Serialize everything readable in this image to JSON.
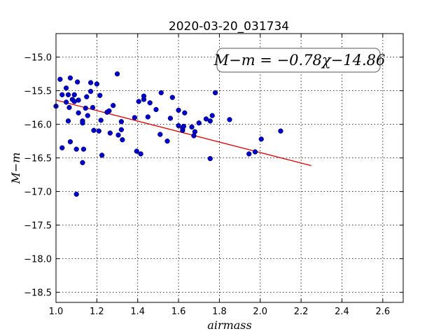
{
  "chart_data": {
    "type": "scatter",
    "title": "2020-03-20_031734",
    "xlabel": "airmass",
    "ylabel": "M−m",
    "annotation": "M−m = −0.78χ−14.86",
    "xlim": [
      1.0,
      2.7
    ],
    "ylim": [
      -18.65,
      -14.65
    ],
    "y_inverted": true,
    "grid": true,
    "xticks": [
      "1.0",
      "1.2",
      "1.4",
      "1.6",
      "1.8",
      "2.0",
      "2.2",
      "2.4",
      "2.6"
    ],
    "yticks": [
      "−15.0",
      "−15.5",
      "−16.0",
      "−16.5",
      "−17.0",
      "−17.5",
      "−18.0",
      "−18.5"
    ],
    "xtick_values": [
      1.0,
      1.2,
      1.4,
      1.6,
      1.8,
      2.0,
      2.2,
      2.4,
      2.6
    ],
    "ytick_values": [
      -15.0,
      -15.5,
      -16.0,
      -16.5,
      -17.0,
      -17.5,
      -18.0,
      -18.5
    ],
    "points_color": "#0000cc",
    "fit_color": "#dd0000",
    "fit": {
      "slope": -0.78,
      "intercept": -14.86,
      "x_range": [
        1.0,
        2.25
      ]
    },
    "points": [
      [
        1.0,
        -15.73
      ],
      [
        1.02,
        -15.33
      ],
      [
        1.03,
        -15.56
      ],
      [
        1.03,
        -16.35
      ],
      [
        1.05,
        -15.46
      ],
      [
        1.05,
        -15.67
      ],
      [
        1.06,
        -15.56
      ],
      [
        1.06,
        -15.95
      ],
      [
        1.065,
        -15.75
      ],
      [
        1.07,
        -15.31
      ],
      [
        1.07,
        -16.26
      ],
      [
        1.08,
        -15.63
      ],
      [
        1.09,
        -15.56
      ],
      [
        1.09,
        -15.66
      ],
      [
        1.1,
        -17.04
      ],
      [
        1.1,
        -16.37
      ],
      [
        1.105,
        -15.37
      ],
      [
        1.11,
        -15.64
      ],
      [
        1.11,
        -15.83
      ],
      [
        1.13,
        -16.57
      ],
      [
        1.13,
        -15.95
      ],
      [
        1.13,
        -15.98
      ],
      [
        1.135,
        -16.37
      ],
      [
        1.145,
        -15.76
      ],
      [
        1.15,
        -15.59
      ],
      [
        1.155,
        -15.87
      ],
      [
        1.17,
        -15.38
      ],
      [
        1.17,
        -15.51
      ],
      [
        1.18,
        -15.75
      ],
      [
        1.185,
        -16.09
      ],
      [
        1.2,
        -15.4
      ],
      [
        1.21,
        -16.1
      ],
      [
        1.215,
        -15.57
      ],
      [
        1.22,
        -15.94
      ],
      [
        1.225,
        -16.46
      ],
      [
        1.25,
        -15.82
      ],
      [
        1.26,
        -15.8
      ],
      [
        1.265,
        -16.13
      ],
      [
        1.28,
        -15.72
      ],
      [
        1.3,
        -15.25
      ],
      [
        1.305,
        -16.16
      ],
      [
        1.32,
        -16.08
      ],
      [
        1.32,
        -15.96
      ],
      [
        1.325,
        -16.23
      ],
      [
        1.385,
        -15.9
      ],
      [
        1.395,
        -16.4
      ],
      [
        1.405,
        -15.66
      ],
      [
        1.415,
        -16.44
      ],
      [
        1.43,
        -15.63
      ],
      [
        1.43,
        -15.58
      ],
      [
        1.45,
        -15.89
      ],
      [
        1.46,
        -15.68
      ],
      [
        1.49,
        -15.78
      ],
      [
        1.51,
        -16.15
      ],
      [
        1.515,
        -15.53
      ],
      [
        1.545,
        -16.25
      ],
      [
        1.56,
        -15.91
      ],
      [
        1.57,
        -15.6
      ],
      [
        1.6,
        -16.02
      ],
      [
        1.6,
        -15.79
      ],
      [
        1.62,
        -16.09
      ],
      [
        1.62,
        -16.06
      ],
      [
        1.625,
        -16.03
      ],
      [
        1.63,
        -15.83
      ],
      [
        1.665,
        -16.04
      ],
      [
        1.675,
        -16.17
      ],
      [
        1.68,
        -16.11
      ],
      [
        1.7,
        -15.98
      ],
      [
        1.735,
        -15.92
      ],
      [
        1.755,
        -16.51
      ],
      [
        1.755,
        -15.95
      ],
      [
        1.765,
        -15.87
      ],
      [
        1.78,
        -15.53
      ],
      [
        1.85,
        -15.93
      ],
      [
        1.945,
        -16.44
      ],
      [
        1.975,
        -16.41
      ],
      [
        2.005,
        -16.22
      ],
      [
        2.1,
        -16.1
      ]
    ]
  }
}
